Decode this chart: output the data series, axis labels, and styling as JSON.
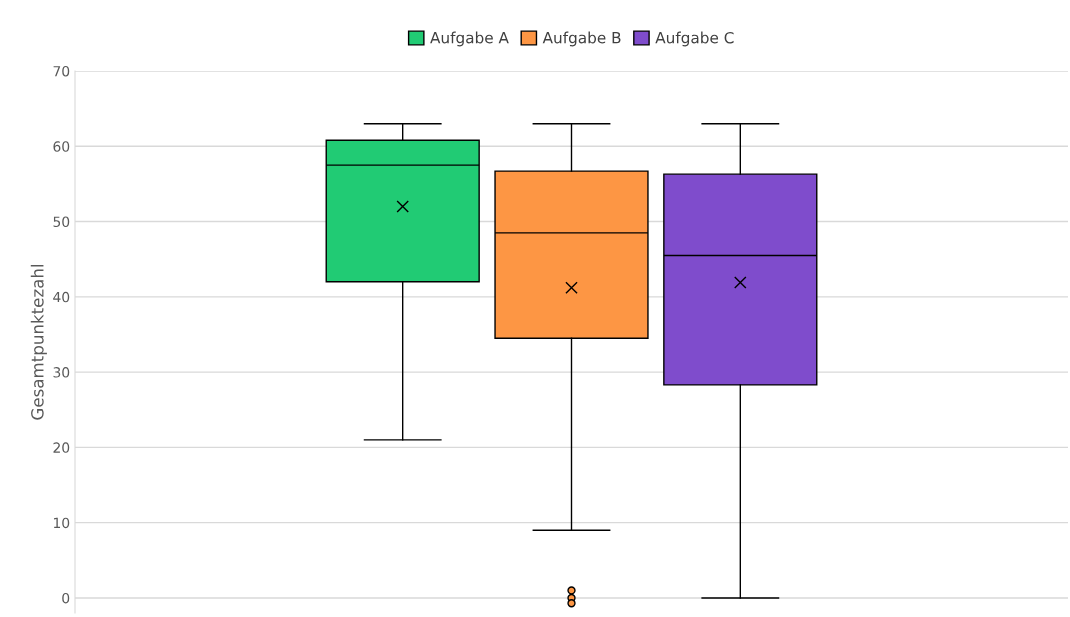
{
  "chart_data": {
    "type": "box",
    "ylabel": "Gesamtpunktezahl",
    "categories": [
      null
    ],
    "ylim": [
      -2,
      70
    ],
    "yticks": [
      0,
      10,
      20,
      30,
      40,
      50,
      60,
      70
    ],
    "grid": "y",
    "legend": "top",
    "series": [
      {
        "name": "Aufgabe A",
        "color": "#21cb74",
        "boxes": [
          {
            "low": 21,
            "q1": 42,
            "median": 57.5,
            "q3": 60.8,
            "high": 63,
            "mean": 52
          }
        ]
      },
      {
        "name": "Aufgabe B",
        "color": "#fd9644",
        "boxes": [
          {
            "low": 9,
            "q1": 34.5,
            "median": 48.5,
            "q3": 56.7,
            "high": 63,
            "mean": 41.2,
            "outliers": [
              1,
              0,
              -0.7
            ]
          }
        ]
      },
      {
        "name": "Aufgabe C",
        "color": "#7f4ccc",
        "boxes": [
          {
            "low": 0,
            "q1": 28.3,
            "median": 45.5,
            "q3": 56.3,
            "high": 63,
            "mean": 41.9
          }
        ]
      }
    ]
  }
}
